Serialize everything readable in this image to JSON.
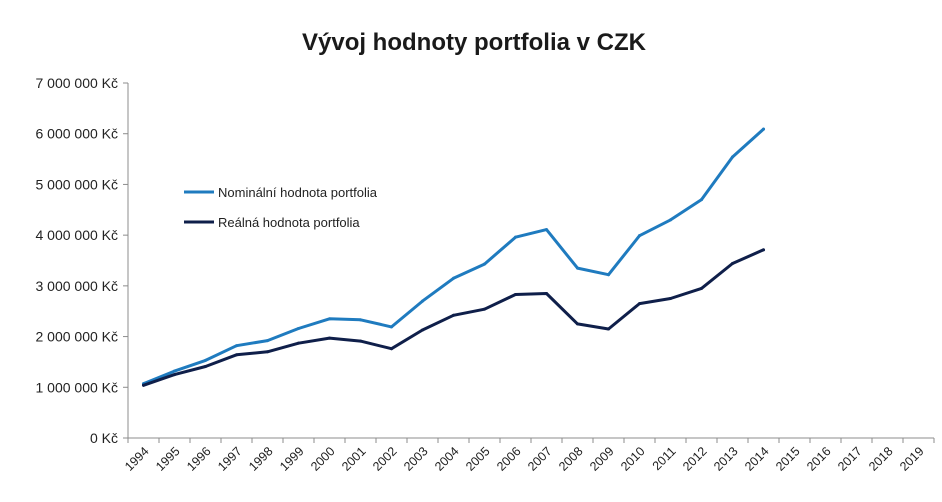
{
  "chart_data": {
    "type": "line",
    "title": "Vývoj hodnoty portfolia v CZK",
    "xlabel": "",
    "ylabel": "",
    "categories": [
      "1994",
      "1995",
      "1996",
      "1997",
      "1998",
      "1999",
      "2000",
      "2001",
      "2002",
      "2003",
      "2004",
      "2005",
      "2006",
      "2007",
      "2008",
      "2009",
      "2010",
      "2011",
      "2012",
      "2013",
      "2014",
      "2015",
      "2016",
      "2017",
      "2018",
      "2019"
    ],
    "ylim": [
      0,
      7000000
    ],
    "yticks": [
      0,
      1000000,
      2000000,
      3000000,
      4000000,
      5000000,
      6000000,
      7000000
    ],
    "ytick_labels": [
      "0 Kč",
      "1 000 000 Kč",
      "2 000 000 Kč",
      "3 000 000 Kč",
      "4 000 000 Kč",
      "5 000 000 Kč",
      "6 000 000 Kč",
      "7 000 000 Kč"
    ],
    "grid": false,
    "legend": "left",
    "series": [
      {
        "name": "Nominální hodnota portfolia",
        "color": "#1f7bbf",
        "values": [
          1070000,
          1320000,
          1530000,
          1820000,
          1920000,
          2160000,
          2350000,
          2330000,
          2190000,
          2700000,
          3150000,
          3430000,
          3960000,
          4110000,
          3350000,
          3220000,
          3990000,
          4300000,
          4700000,
          5540000,
          6090000,
          null,
          null,
          null,
          null,
          null
        ]
      },
      {
        "name": "Reálná hodnota portfolia",
        "color": "#0f1f4a",
        "values": [
          1040000,
          1250000,
          1410000,
          1640000,
          1700000,
          1870000,
          1970000,
          1910000,
          1760000,
          2130000,
          2420000,
          2540000,
          2830000,
          2850000,
          2250000,
          2150000,
          2650000,
          2750000,
          2950000,
          3440000,
          3710000,
          null,
          null,
          null,
          null,
          null
        ]
      }
    ]
  }
}
